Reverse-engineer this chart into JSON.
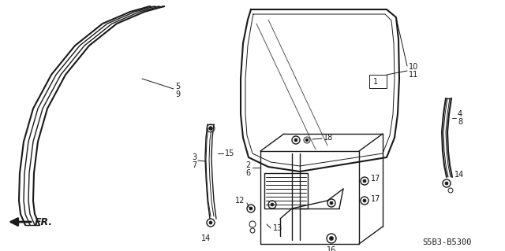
{
  "background_color": "#ffffff",
  "line_color": "#1a1a1a",
  "diagram_code": "S5B3-B5300",
  "fig_width": 6.4,
  "fig_height": 3.19,
  "dpi": 100,
  "sash_left_outer": {
    "x": [
      190,
      170,
      145,
      118,
      95,
      78,
      68,
      63,
      62,
      64,
      68,
      72
    ],
    "y": [
      8,
      15,
      28,
      50,
      80,
      115,
      155,
      195,
      230,
      258,
      275,
      290
    ]
  },
  "sash_left_mid1": {
    "x": [
      196,
      176,
      151,
      124,
      101,
      84,
      74,
      69,
      68,
      70,
      74,
      78
    ],
    "y": [
      8,
      15,
      28,
      50,
      80,
      115,
      155,
      195,
      230,
      258,
      275,
      290
    ]
  },
  "sash_left_mid2": {
    "x": [
      201,
      181,
      156,
      129,
      106,
      89,
      79,
      74,
      73,
      75,
      79,
      83
    ],
    "y": [
      8,
      15,
      28,
      50,
      80,
      115,
      155,
      195,
      230,
      258,
      275,
      290
    ]
  },
  "sash_left_inner": {
    "x": [
      207,
      187,
      162,
      135,
      112,
      95,
      85,
      80,
      79,
      81,
      85,
      89
    ],
    "y": [
      8,
      15,
      28,
      50,
      80,
      115,
      155,
      195,
      230,
      258,
      275,
      290
    ]
  }
}
